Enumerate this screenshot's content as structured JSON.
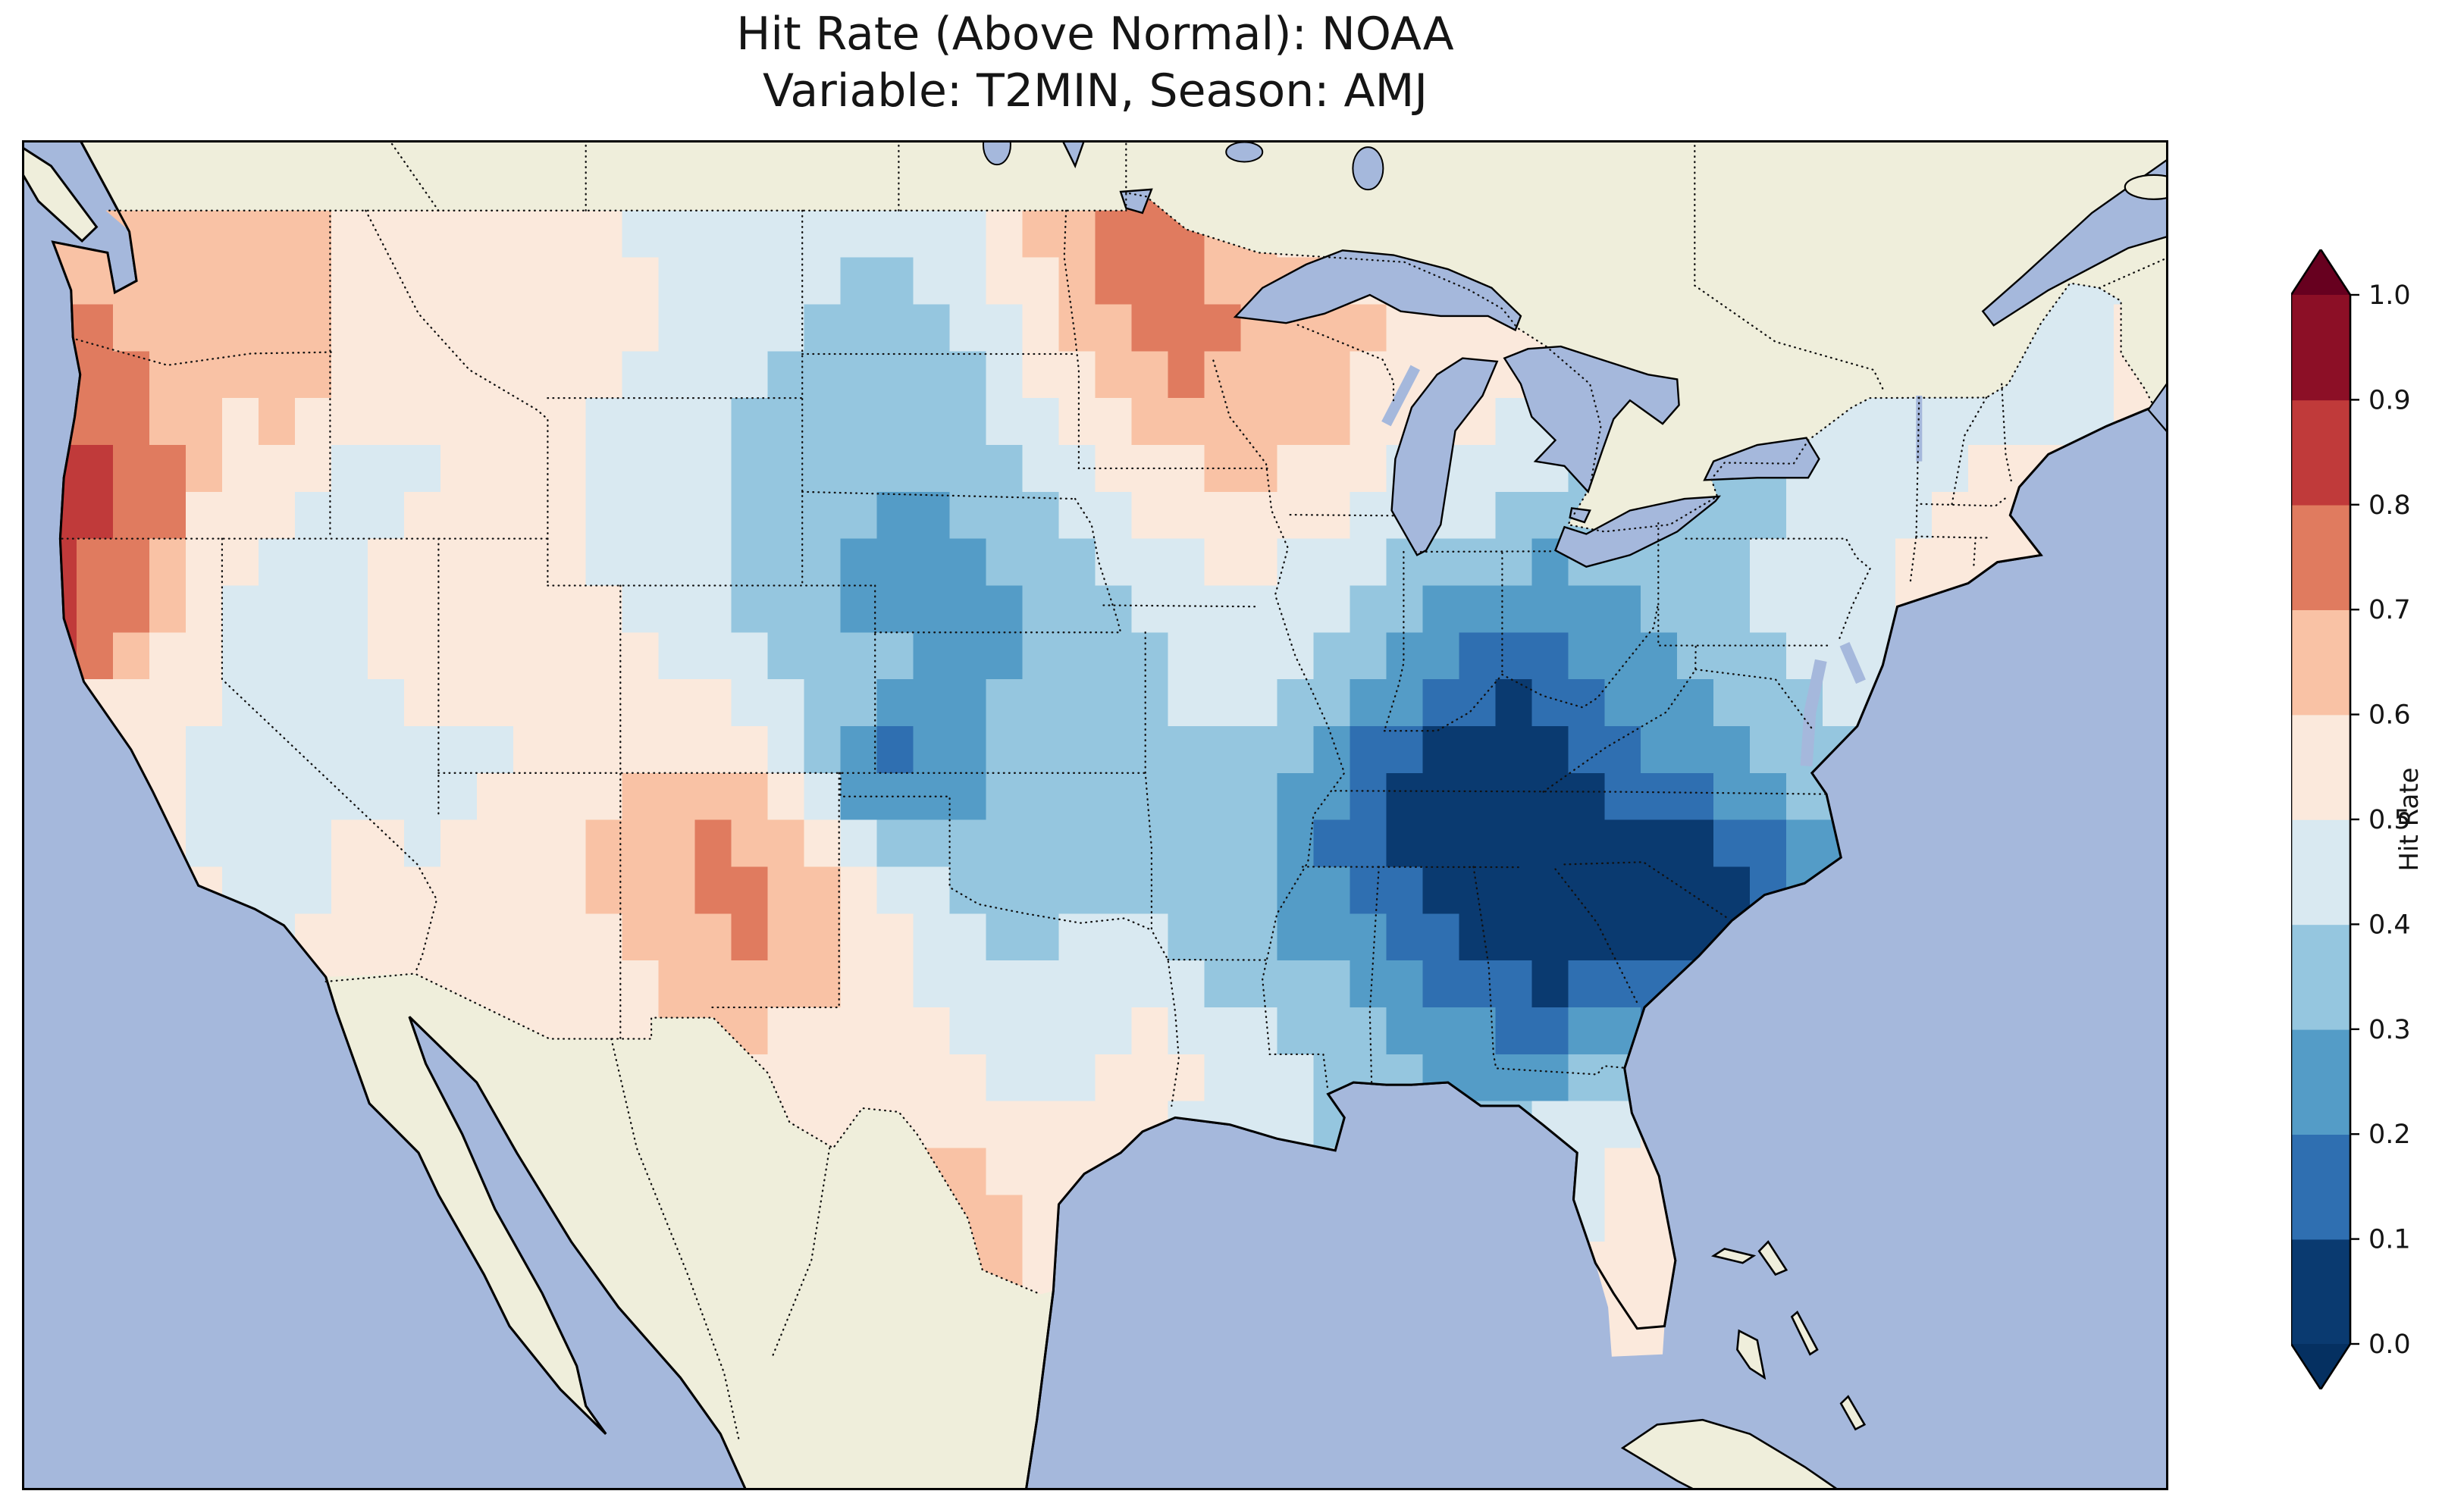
{
  "title": {
    "line1": "Hit Rate (Above Normal): NOAA",
    "line2": "Variable: T2MIN, Season: AMJ"
  },
  "colorbar": {
    "label": "Hit Rate",
    "ticks": [
      "1.0",
      "0.9",
      "0.8",
      "0.7",
      "0.6",
      "0.5",
      "0.4",
      "0.3",
      "0.2",
      "0.1",
      "0.0"
    ]
  },
  "colors": {
    "background": "#ffffff",
    "ocean": "#a5b8dc",
    "land": "#efeedb",
    "coastline": "#000000",
    "borders": "#111111",
    "cbar_under": "#053061",
    "cbar_over": "#67001f",
    "bins": [
      "#0a3a70",
      "#2f6fb1",
      "#549cc7",
      "#95c6df",
      "#d9e9f1",
      "#fbe9dc",
      "#f9c2a5",
      "#e07b5f",
      "#c03a3a",
      "#8c0f26"
    ]
  },
  "chart_data": {
    "type": "heatmap",
    "title": "Hit Rate (Above Normal): NOAA",
    "subtitle": "Variable: T2MIN, Season: AMJ",
    "region": "Contiguous United States map (lon -125.5..-66.5, lat 21.7..50.5)",
    "value_name": "Hit Rate",
    "value_range": [
      0.0,
      1.0
    ],
    "colormap": "RdBu_r, discrete 0.1 bins, extend both",
    "colorbar_ticks": [
      1.0,
      0.9,
      0.8,
      0.7,
      0.6,
      0.5,
      0.4,
      0.3,
      0.2,
      0.1,
      0.0
    ],
    "grid_resolution_deg": 2,
    "lon_centers": [
      -124,
      -122,
      -120,
      -118,
      -116,
      -114,
      -112,
      -110,
      -108,
      -106,
      -104,
      -102,
      -100,
      -98,
      -96,
      -94,
      -92,
      -90,
      -88,
      -86,
      -84,
      -82,
      -80,
      -78,
      -76,
      -74,
      -72,
      -70,
      -68
    ],
    "lat_centers": [
      49,
      47,
      45,
      43,
      41,
      39,
      37,
      35,
      33,
      31,
      29,
      27,
      25
    ],
    "values": [
      [
        0.6,
        0.65,
        0.6,
        0.7,
        0.55,
        0.5,
        0.55,
        0.5,
        0.45,
        0.4,
        0.45,
        0.4,
        0.45,
        0.6,
        0.7,
        0.75,
        0.6,
        0.55,
        0.5,
        null,
        null,
        null,
        null,
        null,
        null,
        null,
        null,
        0.5,
        0.45
      ],
      [
        0.7,
        0.65,
        0.6,
        0.65,
        0.5,
        0.55,
        0.5,
        0.55,
        0.5,
        0.45,
        0.4,
        0.35,
        0.4,
        0.55,
        0.7,
        0.75,
        0.7,
        0.65,
        0.6,
        0.6,
        null,
        null,
        null,
        null,
        null,
        null,
        0.45,
        0.5,
        0.5
      ],
      [
        0.75,
        0.7,
        0.6,
        0.65,
        0.55,
        0.5,
        0.55,
        0.5,
        0.45,
        0.4,
        0.35,
        0.3,
        0.35,
        0.45,
        0.6,
        0.7,
        0.65,
        0.7,
        0.55,
        0.55,
        0.5,
        null,
        null,
        null,
        0.45,
        0.45,
        0.5,
        0.45,
        0.5
      ],
      [
        0.85,
        0.8,
        0.55,
        0.5,
        0.45,
        0.5,
        0.55,
        0.5,
        0.45,
        0.4,
        0.35,
        0.3,
        0.3,
        0.35,
        0.45,
        0.55,
        0.6,
        0.55,
        0.45,
        0.45,
        0.4,
        0.35,
        null,
        0.35,
        0.4,
        0.45,
        0.5,
        0.55,
        null
      ],
      [
        0.8,
        0.7,
        0.5,
        0.45,
        0.5,
        0.55,
        0.5,
        0.5,
        0.45,
        0.4,
        0.3,
        0.25,
        0.25,
        0.3,
        0.35,
        0.45,
        0.5,
        0.45,
        0.4,
        0.3,
        0.25,
        0.3,
        0.35,
        0.4,
        0.45,
        0.5,
        0.6,
        0.55,
        null
      ],
      [
        null,
        0.6,
        0.5,
        0.45,
        0.5,
        0.55,
        0.5,
        0.55,
        0.5,
        0.45,
        0.4,
        0.35,
        0.3,
        0.3,
        0.35,
        0.4,
        0.45,
        0.4,
        0.3,
        0.15,
        0.1,
        0.2,
        0.3,
        0.35,
        0.4,
        0.5,
        null,
        null,
        null
      ],
      [
        null,
        0.55,
        0.45,
        0.5,
        0.45,
        0.4,
        0.5,
        0.55,
        0.6,
        0.65,
        0.45,
        0.1,
        0.25,
        0.35,
        0.4,
        0.4,
        0.35,
        0.25,
        0.1,
        0.05,
        0.05,
        0.1,
        0.2,
        0.3,
        0.35,
        null,
        null,
        null,
        null
      ],
      [
        null,
        null,
        0.5,
        0.45,
        0.55,
        0.5,
        0.6,
        0.6,
        0.7,
        0.75,
        0.65,
        0.45,
        0.35,
        0.3,
        0.35,
        0.4,
        0.35,
        0.2,
        0.1,
        0.05,
        0.02,
        0.05,
        0.02,
        0.1,
        0.25,
        null,
        null,
        null,
        null
      ],
      [
        null,
        null,
        null,
        0.5,
        0.55,
        0.55,
        0.6,
        0.55,
        0.6,
        0.7,
        0.7,
        0.55,
        0.45,
        0.4,
        0.45,
        0.4,
        0.35,
        0.3,
        0.2,
        0.1,
        0.05,
        0.05,
        0.1,
        null,
        null,
        null,
        null,
        null,
        null
      ],
      [
        null,
        null,
        null,
        null,
        null,
        null,
        null,
        null,
        null,
        0.6,
        0.55,
        0.6,
        0.5,
        0.45,
        0.5,
        0.55,
        0.45,
        0.4,
        0.35,
        0.25,
        0.2,
        0.3,
        null,
        null,
        null,
        null,
        null,
        null,
        null
      ],
      [
        null,
        null,
        null,
        null,
        null,
        null,
        null,
        null,
        null,
        null,
        null,
        0.55,
        0.6,
        0.55,
        0.5,
        0.5,
        0.45,
        0.4,
        null,
        null,
        0.45,
        0.5,
        0.55,
        null,
        null,
        null,
        null,
        null,
        null
      ],
      [
        null,
        null,
        null,
        null,
        null,
        null,
        null,
        null,
        null,
        null,
        null,
        null,
        0.65,
        0.6,
        null,
        null,
        null,
        null,
        null,
        null,
        null,
        0.5,
        0.5,
        null,
        null,
        null,
        null,
        null,
        null
      ],
      [
        null,
        null,
        null,
        null,
        null,
        null,
        null,
        null,
        null,
        null,
        null,
        null,
        null,
        0.55,
        null,
        null,
        null,
        null,
        null,
        null,
        null,
        0.55,
        0.55,
        null,
        null,
        null,
        null,
        null,
        null
      ]
    ]
  }
}
